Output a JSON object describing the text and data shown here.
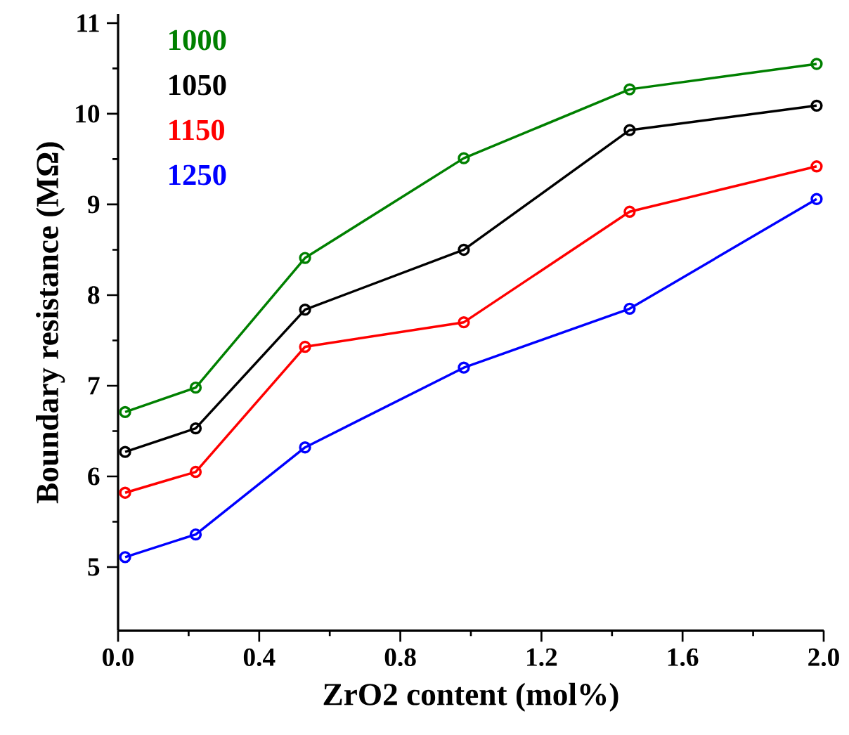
{
  "chart_data": {
    "type": "line",
    "xlabel": "ZrO2 content  (mol%)",
    "ylabel": "Boundary resistance (MΩ)",
    "x": [
      0.02,
      0.22,
      0.53,
      0.98,
      1.45,
      1.98
    ],
    "series": [
      {
        "name": "1000",
        "color": "#008000",
        "values": [
          6.71,
          6.98,
          8.41,
          9.51,
          10.27,
          10.55
        ]
      },
      {
        "name": "1050",
        "color": "#000000",
        "values": [
          6.27,
          6.53,
          7.84,
          8.5,
          9.82,
          10.09
        ]
      },
      {
        "name": "1150",
        "color": "#ff0000",
        "values": [
          5.82,
          6.05,
          7.43,
          7.7,
          8.92,
          9.42
        ]
      },
      {
        "name": "1250",
        "color": "#0000ff",
        "values": [
          5.11,
          5.36,
          6.32,
          7.2,
          7.85,
          9.06
        ]
      }
    ],
    "xlim": [
      0,
      2.0
    ],
    "ylim": [
      4.3,
      11.1
    ],
    "xticks": [
      {
        "value": 0,
        "label": "0.0"
      },
      0.4,
      0.8,
      1.2,
      1.6,
      {
        "value": 2.0,
        "label": "2.0"
      }
    ],
    "yticks": [
      5,
      6,
      7,
      8,
      9,
      10,
      11
    ],
    "marker": "circle",
    "line_style": "solid",
    "legend": "top left",
    "grid": false
  }
}
